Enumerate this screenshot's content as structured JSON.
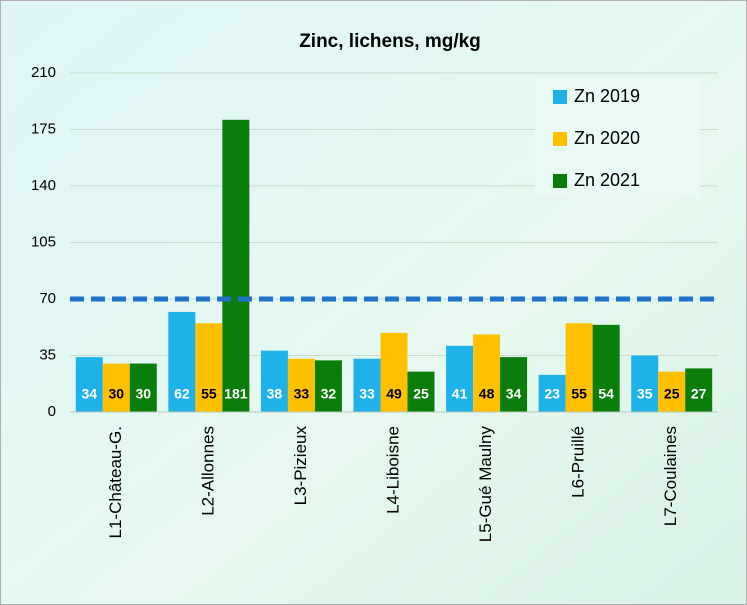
{
  "chart_data": {
    "type": "bar",
    "title": "Zinc, lichens, mg/kg",
    "categories": [
      "L1-Château-G.",
      "L2-Allonnes",
      "L3-Pizieux",
      "L4-Liboisne",
      "L5-Gué Maulny",
      "L6-Pruillé",
      "L7-Coulaines"
    ],
    "series": [
      {
        "name": "Zn 2019",
        "color": "#1fb1ea",
        "values": [
          34,
          62,
          38,
          33,
          41,
          23,
          35
        ]
      },
      {
        "name": "Zn 2020",
        "color": "#ffc000",
        "values": [
          30,
          55,
          33,
          49,
          48,
          55,
          25
        ]
      },
      {
        "name": "Zn 2021",
        "color": "#0a7d0a",
        "values": [
          30,
          181,
          32,
          25,
          34,
          54,
          27
        ]
      }
    ],
    "threshold": 70,
    "threshold_color": "#1f72c8",
    "ylim": [
      0,
      210
    ],
    "yticks": [
      0,
      35,
      70,
      105,
      140,
      175,
      210
    ],
    "grid": true,
    "legend": "top-right"
  }
}
